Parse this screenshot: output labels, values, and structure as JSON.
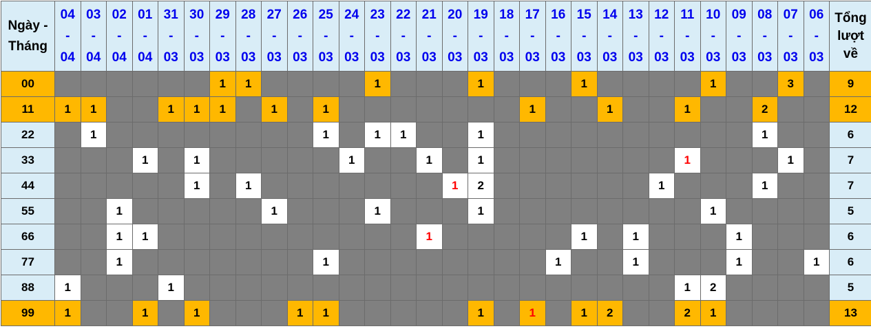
{
  "header": {
    "row_label": "Ngày - Tháng",
    "total_label": "Tổng lượt về",
    "dates": [
      {
        "day": "04",
        "month": "04"
      },
      {
        "day": "03",
        "month": "04"
      },
      {
        "day": "02",
        "month": "04"
      },
      {
        "day": "01",
        "month": "04"
      },
      {
        "day": "31",
        "month": "03"
      },
      {
        "day": "30",
        "month": "03"
      },
      {
        "day": "29",
        "month": "03"
      },
      {
        "day": "28",
        "month": "03"
      },
      {
        "day": "27",
        "month": "03"
      },
      {
        "day": "26",
        "month": "03"
      },
      {
        "day": "25",
        "month": "03"
      },
      {
        "day": "24",
        "month": "03"
      },
      {
        "day": "23",
        "month": "03"
      },
      {
        "day": "22",
        "month": "03"
      },
      {
        "day": "21",
        "month": "03"
      },
      {
        "day": "20",
        "month": "03"
      },
      {
        "day": "19",
        "month": "03"
      },
      {
        "day": "18",
        "month": "03"
      },
      {
        "day": "17",
        "month": "03"
      },
      {
        "day": "16",
        "month": "03"
      },
      {
        "day": "15",
        "month": "03"
      },
      {
        "day": "14",
        "month": "03"
      },
      {
        "day": "13",
        "month": "03"
      },
      {
        "day": "12",
        "month": "03"
      },
      {
        "day": "11",
        "month": "03"
      },
      {
        "day": "10",
        "month": "03"
      },
      {
        "day": "09",
        "month": "03"
      },
      {
        "day": "08",
        "month": "03"
      },
      {
        "day": "07",
        "month": "03"
      },
      {
        "day": "06",
        "month": "03"
      }
    ],
    "separator": "-"
  },
  "colors": {
    "empty": "#808080",
    "hit": "#ffffff",
    "highlight": "#ffb800",
    "label_bg": "#d9edf7",
    "date_text": "#0000ee",
    "red_text": "#ff0000"
  },
  "chart_data": {
    "type": "table",
    "rows": [
      {
        "label": "00",
        "highlight": true,
        "total": "9",
        "red": [],
        "cells": [
          "",
          "",
          "",
          "",
          "",
          "",
          "1",
          "1",
          "",
          "",
          "",
          "",
          "1",
          "",
          "",
          "",
          "1",
          "",
          "",
          "",
          "1",
          "",
          "",
          "",
          "",
          "1",
          "",
          "",
          "3",
          ""
        ]
      },
      {
        "label": "11",
        "highlight": true,
        "total": "12",
        "red": [],
        "cells": [
          "1",
          "1",
          "",
          "",
          "1",
          "1",
          "1",
          "",
          "1",
          "",
          "1",
          "",
          "",
          "",
          "",
          "",
          "",
          "",
          "1",
          "",
          "",
          "1",
          "",
          "",
          "1",
          "",
          "",
          "2",
          "",
          ""
        ]
      },
      {
        "label": "22",
        "highlight": false,
        "total": "6",
        "red": [],
        "cells": [
          "",
          "1",
          "",
          "",
          "",
          "",
          "",
          "",
          "",
          "",
          "1",
          "",
          "1",
          "1",
          "",
          "",
          "1",
          "",
          "",
          "",
          "",
          "",
          "",
          "",
          "",
          "",
          "",
          "1",
          "",
          ""
        ]
      },
      {
        "label": "33",
        "highlight": false,
        "total": "7",
        "red": [
          24
        ],
        "cells": [
          "",
          "",
          "",
          "1",
          "",
          "1",
          "",
          "",
          "",
          "",
          "",
          "1",
          "",
          "",
          "1",
          "",
          "1",
          "",
          "",
          "",
          "",
          "",
          "",
          "",
          "1",
          "",
          "",
          "",
          "1",
          ""
        ]
      },
      {
        "label": "44",
        "highlight": false,
        "total": "7",
        "red": [
          15
        ],
        "cells": [
          "",
          "",
          "",
          "",
          "",
          "1",
          "",
          "1",
          "",
          "",
          "",
          "",
          "",
          "",
          "",
          "1",
          "2",
          "",
          "",
          "",
          "",
          "",
          "",
          "1",
          "",
          "",
          "",
          "1",
          "",
          ""
        ]
      },
      {
        "label": "55",
        "highlight": false,
        "total": "5",
        "red": [],
        "cells": [
          "",
          "",
          "1",
          "",
          "",
          "",
          "",
          "",
          "1",
          "",
          "",
          "",
          "1",
          "",
          "",
          "",
          "1",
          "",
          "",
          "",
          "",
          "",
          "",
          "",
          "",
          "1",
          "",
          "",
          "",
          ""
        ]
      },
      {
        "label": "66",
        "highlight": false,
        "total": "6",
        "red": [
          14
        ],
        "cells": [
          "",
          "",
          "1",
          "1",
          "",
          "",
          "",
          "",
          "",
          "",
          "",
          "",
          "",
          "",
          "1",
          "",
          "",
          "",
          "",
          "",
          "1",
          "",
          "1",
          "",
          "",
          "",
          "1",
          "",
          "",
          ""
        ]
      },
      {
        "label": "77",
        "highlight": false,
        "total": "6",
        "red": [],
        "cells": [
          "",
          "",
          "1",
          "",
          "",
          "",
          "",
          "",
          "",
          "",
          "1",
          "",
          "",
          "",
          "",
          "",
          "",
          "",
          "",
          "1",
          "",
          "",
          "1",
          "",
          "",
          "",
          "1",
          "",
          "",
          "1"
        ]
      },
      {
        "label": "88",
        "highlight": false,
        "total": "5",
        "red": [],
        "cells": [
          "1",
          "",
          "",
          "",
          "1",
          "",
          "",
          "",
          "",
          "",
          "",
          "",
          "",
          "",
          "",
          "",
          "",
          "",
          "",
          "",
          "",
          "",
          "",
          "",
          "1",
          "2",
          "",
          "",
          "",
          ""
        ]
      },
      {
        "label": "99",
        "highlight": true,
        "total": "13",
        "red": [
          18
        ],
        "cells": [
          "1",
          "",
          "",
          "1",
          "",
          "1",
          "",
          "",
          "",
          "1",
          "1",
          "",
          "",
          "",
          "",
          "",
          "1",
          "",
          "1",
          "",
          "1",
          "2",
          "",
          "",
          "2",
          "1",
          "",
          "",
          "",
          ""
        ]
      }
    ]
  }
}
